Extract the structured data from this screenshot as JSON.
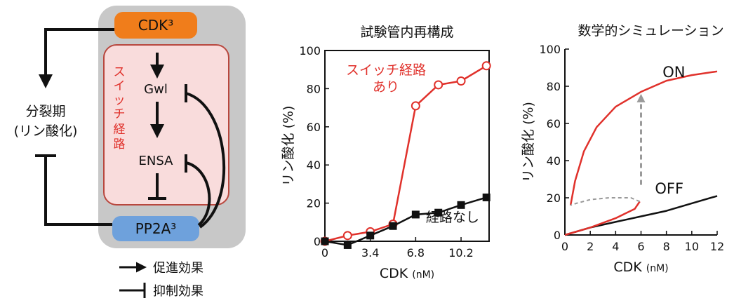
{
  "diagram": {
    "nodes": {
      "cdk": "CDK³",
      "gwl": "Gwl",
      "ensa": "ENSA",
      "pp2a": "PP2A³"
    },
    "switch_label": [
      "ス",
      "イ",
      "ッ",
      "チ",
      "経",
      "路"
    ],
    "mitosis_label": [
      "分裂期",
      "(リン酸化)"
    ],
    "legend": {
      "promote": "促進効果",
      "inhibit": "抑制効果"
    },
    "colors": {
      "cdk_box": "#f07d1b",
      "pp2a_box": "#6ea1dc",
      "switch_fill": "#f9dcdc",
      "switch_stroke": "#b8473e",
      "outer_box": "#c8c8c8"
    }
  },
  "charts": {
    "in_vitro_title": "試験管内再構成",
    "sim_title": "数学的シミュレーション"
  },
  "chart_data": [
    {
      "type": "line",
      "title": "試験管内再構成",
      "xlabel": "CDK",
      "xunit": "(nM)",
      "ylabel": "リン酸化 (%)",
      "xlim": [
        0,
        12.3
      ],
      "ylim": [
        0,
        100
      ],
      "xticks": [
        0,
        3.4,
        6.8,
        10.2
      ],
      "xtick_labels": [
        "0",
        "3.4",
        "6.8",
        "10.2"
      ],
      "yticks": [
        0,
        20,
        40,
        60,
        80,
        100
      ],
      "ytick_labels": [
        "0",
        "20",
        "40",
        "60",
        "80",
        "100"
      ],
      "series": [
        {
          "name": "スイッチ経路あり",
          "label_lines": [
            "スイッチ経路",
            "あり"
          ],
          "color": "#e0312b",
          "marker": "open-circle",
          "points": [
            [
              0,
              0
            ],
            [
              1.7,
              3
            ],
            [
              3.4,
              5
            ],
            [
              5.1,
              9
            ],
            [
              6.8,
              71
            ],
            [
              8.5,
              82
            ],
            [
              10.2,
              84
            ],
            [
              12.1,
              92
            ]
          ]
        },
        {
          "name": "経路なし",
          "color": "#111111",
          "marker": "filled-square",
          "points": [
            [
              0,
              0
            ],
            [
              1.7,
              -2
            ],
            [
              3.4,
              3
            ],
            [
              5.1,
              8
            ],
            [
              6.8,
              14
            ],
            [
              8.5,
              15
            ],
            [
              10.2,
              19
            ],
            [
              12.1,
              23
            ]
          ]
        }
      ],
      "grid": false
    },
    {
      "type": "line",
      "title": "数学的シミュレーション",
      "xlabel": "CDK",
      "xunit": "(nM)",
      "ylabel": "リン酸化 (%)",
      "xlim": [
        0,
        12
      ],
      "ylim": [
        0,
        100
      ],
      "xticks": [
        0,
        2,
        4,
        6,
        8,
        10,
        12
      ],
      "xtick_labels": [
        "0",
        "2",
        "4",
        "6",
        "8",
        "10",
        "12"
      ],
      "yticks": [
        0,
        20,
        40,
        60,
        80,
        100
      ],
      "ytick_labels": [
        "0",
        "20",
        "40",
        "60",
        "80",
        "100"
      ],
      "series": [
        {
          "name": "ON",
          "color": "#e0312b",
          "points": [
            [
              0.45,
              16
            ],
            [
              0.8,
              29
            ],
            [
              1.5,
              45
            ],
            [
              2.5,
              58
            ],
            [
              4,
              69
            ],
            [
              6,
              77
            ],
            [
              8,
              83
            ],
            [
              10,
              86
            ],
            [
              12,
              88
            ]
          ]
        },
        {
          "name": "OFF",
          "color": "#111111",
          "points": [
            [
              0,
              0
            ],
            [
              2,
              4
            ],
            [
              4,
              7
            ],
            [
              6,
              10
            ],
            [
              8,
              13
            ],
            [
              10,
              17
            ],
            [
              12,
              21
            ]
          ]
        },
        {
          "name": "",
          "color": "#e0312b",
          "style": "solid",
          "points": [
            [
              0,
              0
            ],
            [
              2,
              4
            ],
            [
              4,
              9
            ],
            [
              5.5,
              14
            ],
            [
              5.9,
              18
            ]
          ]
        },
        {
          "name": "",
          "color": "#999999",
          "style": "dashed",
          "points": [
            [
              5.9,
              18
            ],
            [
              5.2,
              20
            ],
            [
              3.5,
              20
            ],
            [
              2,
              19
            ],
            [
              0.9,
              17
            ],
            [
              0.45,
              16
            ]
          ]
        }
      ],
      "annotations": [
        {
          "type": "arrow",
          "style": "dashed",
          "from": [
            6,
            27
          ],
          "to": [
            6,
            75
          ],
          "color": "#9a9a9a"
        }
      ],
      "grid": false
    }
  ]
}
